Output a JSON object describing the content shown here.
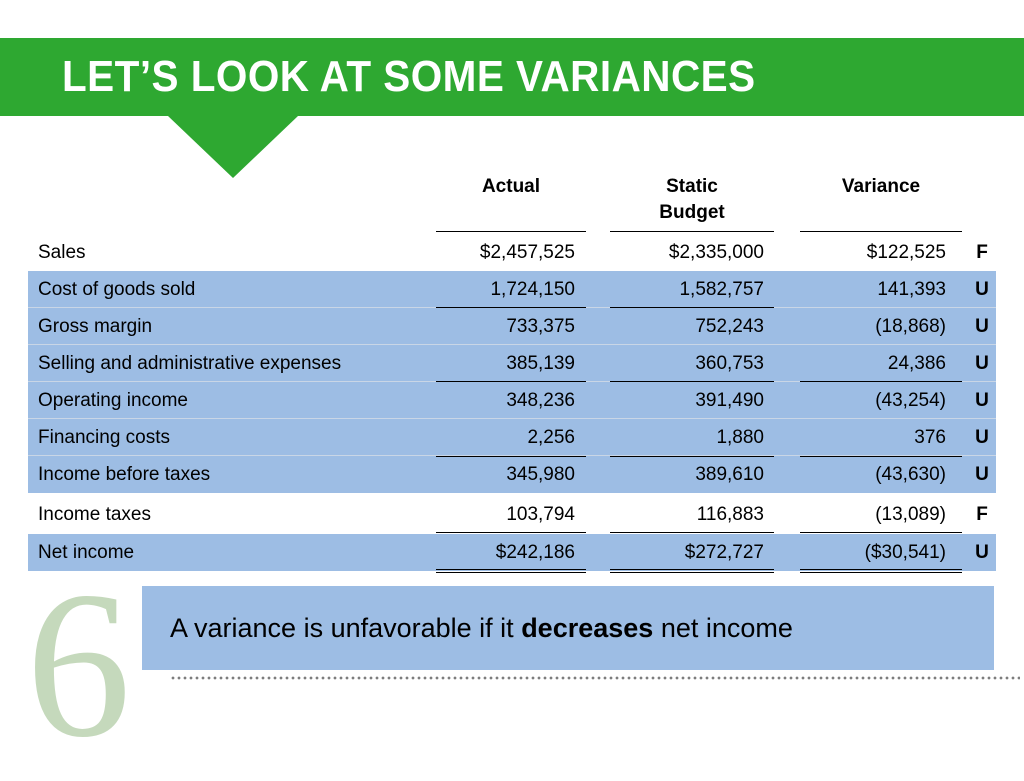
{
  "title": "LET’S LOOK AT SOME VARIANCES",
  "colors": {
    "banner": "#2ea831",
    "row_highlight": "#9dbde4"
  },
  "columns": {
    "actual": "Actual",
    "static_budget_line1": "Static",
    "static_budget_line2": "Budget",
    "variance": "Variance"
  },
  "rows": [
    {
      "label": "Sales",
      "actual": "$2,457,525",
      "budget": "$2,335,000",
      "variance": "$122,525",
      "flag": "F"
    },
    {
      "label": "Cost of goods sold",
      "actual": "1,724,150",
      "budget": "1,582,757",
      "variance": "141,393",
      "flag": "U"
    },
    {
      "label": "Gross margin",
      "actual": "733,375",
      "budget": "752,243",
      "variance": "(18,868)",
      "flag": "U"
    },
    {
      "label": "Selling and administrative expenses",
      "actual": "385,139",
      "budget": "360,753",
      "variance": "24,386",
      "flag": "U"
    },
    {
      "label": "Operating income",
      "actual": "348,236",
      "budget": "391,490",
      "variance": "(43,254)",
      "flag": "U"
    },
    {
      "label": "Financing costs",
      "actual": "2,256",
      "budget": "1,880",
      "variance": "376",
      "flag": "U"
    },
    {
      "label": "Income before taxes",
      "actual": "345,980",
      "budget": "389,610",
      "variance": "(43,630)",
      "flag": "U"
    },
    {
      "label": "Income taxes",
      "actual": "103,794",
      "budget": "116,883",
      "variance": "(13,089)",
      "flag": "F"
    },
    {
      "label": "Net income",
      "actual": "$242,186",
      "budget": "$272,727",
      "variance": "($30,541)",
      "flag": "U"
    }
  ],
  "callout": {
    "prefix": "A variance is unfavorable if it ",
    "emphasis": "decreases",
    "suffix": " net income"
  },
  "chapter_number": "6"
}
